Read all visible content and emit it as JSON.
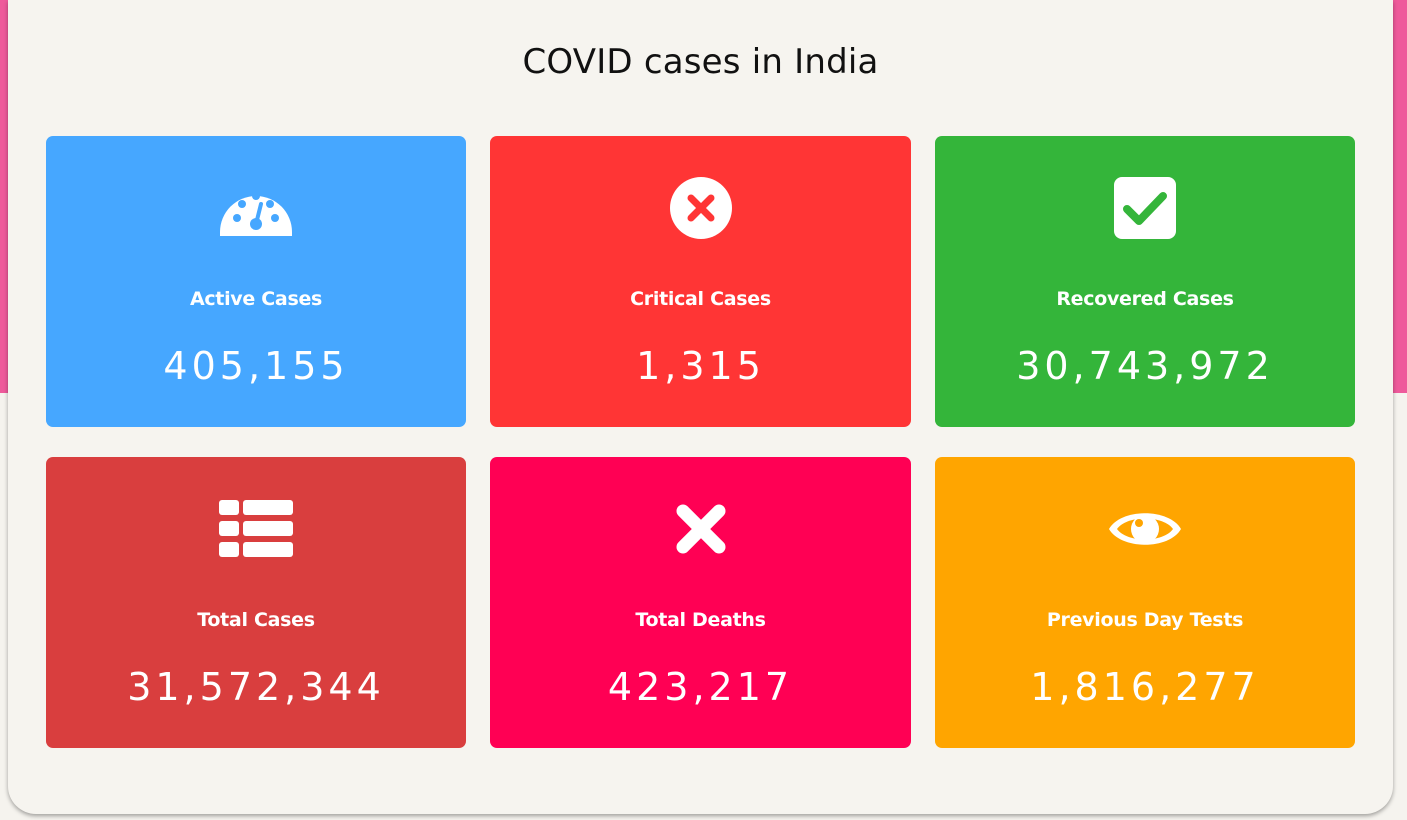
{
  "header": {
    "title": "COVID cases in India"
  },
  "colors": {
    "background_band": "#ee5a9b",
    "panel": "#f6f4ef",
    "active": "#46a7ff",
    "critical": "#ff3535",
    "recovered": "#34b53a",
    "total": "#d93e3e",
    "deaths": "#ff0054",
    "tests": "#ffa500"
  },
  "cards": [
    {
      "icon": "speedometer-icon",
      "label": "Active Cases",
      "value": "405,155"
    },
    {
      "icon": "times-circle-icon",
      "label": "Critical Cases",
      "value": "1,315"
    },
    {
      "icon": "check-square-icon",
      "label": "Recovered Cases",
      "value": "30,743,972"
    },
    {
      "icon": "list-icon",
      "label": "Total Cases",
      "value": "31,572,344"
    },
    {
      "icon": "x-mark-icon",
      "label": "Total Deaths",
      "value": "423,217"
    },
    {
      "icon": "eye-icon",
      "label": "Previous Day Tests",
      "value": "1,816,277"
    }
  ]
}
